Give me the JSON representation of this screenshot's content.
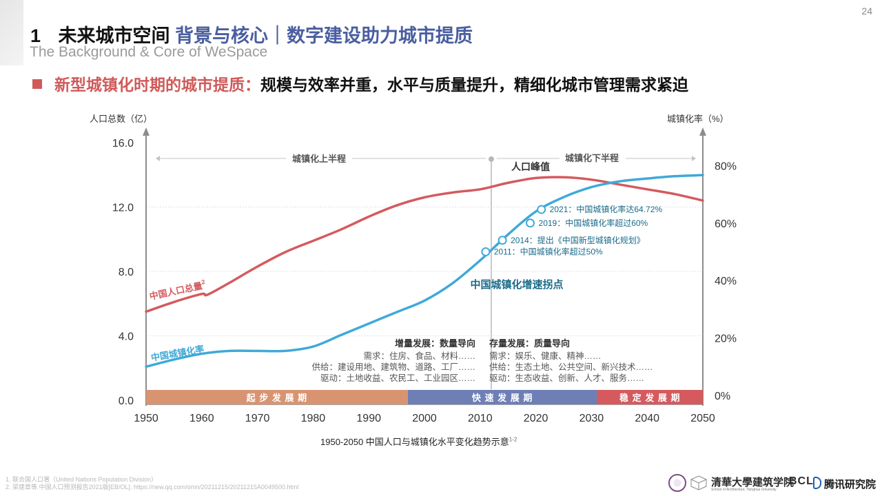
{
  "page_number": "24",
  "title": {
    "number": "1",
    "main": "未来城市空间",
    "accent": "背景与核心｜数字建设助力城市提质"
  },
  "subtitle_en": "The Background & Core of WeSpace",
  "headline": {
    "red": "新型城镇化时期的城市提质：",
    "black": "规模与效率并重，水平与质量提升，精细化城市管理需求紧迫"
  },
  "colors": {
    "population": "#d45a5e",
    "urbanization": "#3fa9d8",
    "phase1": "#d89470",
    "phase2": "#6e7fb6",
    "phase3": "#d45a5e",
    "accent": "#4a5ea0",
    "annotation": "#1a6b8a"
  },
  "chart_data": {
    "type": "line",
    "x": [
      1950,
      1955,
      1960,
      1961,
      1965,
      1970,
      1975,
      1980,
      1985,
      1990,
      1995,
      2000,
      2005,
      2010,
      2015,
      2020,
      2022,
      2025,
      2030,
      2035,
      2040,
      2045,
      2050
    ],
    "xlim": [
      1950,
      2050
    ],
    "x_ticks": [
      1950,
      1960,
      1970,
      1980,
      1990,
      2000,
      2010,
      2020,
      2030,
      2040,
      2050
    ],
    "y_left_label": "人口总数（亿）",
    "y_left_lim": [
      0,
      16
    ],
    "y_left_ticks": [
      "16.0",
      "12.0",
      "8.0",
      "4.0",
      "0.0"
    ],
    "y_left_tick_values": [
      16,
      12,
      8,
      4,
      0
    ],
    "y_right_label": "城镇化率（%）",
    "y_right_lim": [
      0,
      88
    ],
    "y_right_ticks": [
      "80%",
      "60%",
      "40%",
      "20%",
      "0%"
    ],
    "y_right_tick_values": [
      80,
      60,
      40,
      20,
      0
    ],
    "series": [
      {
        "name": "中国人口总量",
        "superscript": "2",
        "axis": "left",
        "color": "#d45a5e",
        "x": [
          1950,
          1955,
          1960,
          1961,
          1965,
          1970,
          1975,
          1980,
          1985,
          1990,
          1995,
          2000,
          2005,
          2010,
          2015,
          2020,
          2025,
          2030,
          2035,
          2040,
          2045,
          2050
        ],
        "values": [
          5.5,
          6.1,
          6.6,
          6.55,
          7.3,
          8.3,
          9.2,
          9.9,
          10.6,
          11.4,
          12.1,
          12.6,
          12.9,
          13.1,
          13.5,
          13.8,
          13.85,
          13.7,
          13.4,
          13.1,
          12.8,
          12.4
        ]
      },
      {
        "name": "中国城镇化率",
        "axis": "right",
        "color": "#3fa9d8",
        "x": [
          1950,
          1955,
          1960,
          1965,
          1970,
          1975,
          1980,
          1985,
          1990,
          1995,
          2000,
          2005,
          2010,
          2015,
          2020,
          2025,
          2030,
          2035,
          2040,
          2045,
          2050
        ],
        "values": [
          10,
          12.5,
          14.5,
          15.5,
          15.5,
          15.5,
          17,
          21,
          25,
          29,
          33,
          39,
          47,
          56,
          64,
          69,
          72.5,
          74.5,
          75.5,
          76.3,
          76.7
        ]
      }
    ],
    "milestones": [
      {
        "year": 2011,
        "rate": 50,
        "label": "2011：中国城镇化率超过50%"
      },
      {
        "year": 2014,
        "rate": 54,
        "label": "2014：提出《中国新型城镇化规划》"
      },
      {
        "year": 2019,
        "rate": 60,
        "label": "2019：中国城镇化率超过60%"
      },
      {
        "year": 2021,
        "rate": 64.72,
        "label": "2021：中国城镇化率达64.72%"
      }
    ],
    "annotations": {
      "inflection_label": "中国城镇化增速拐点",
      "peak_label": "人口峰值",
      "first_half": "城镇化上半程",
      "second_half": "城镇化下半程",
      "divider_year": 2012
    },
    "phases_text": [
      {
        "title": "增量发展：数量导向",
        "lines": [
          "需求：住房、食品、材料……",
          "供给：建设用地、建筑物、道路、工厂……",
          "驱动：土地收益、农民工、工业园区……"
        ]
      },
      {
        "title": "存量发展：质量导向",
        "lines": [
          "需求：娱乐、健康、精神……",
          "供给：生态土地、公共空间、新兴技术……",
          "驱动：生态收益、创新、人才、服务……"
        ]
      }
    ],
    "periods": [
      {
        "label": "起步发展期",
        "start": 1950,
        "end": 1997,
        "color": "#d89470"
      },
      {
        "label": "快速发展期",
        "start": 1997,
        "end": 2031,
        "color": "#6e7fb6"
      },
      {
        "label": "稳定发展期",
        "start": 2031,
        "end": 2050,
        "color": "#d45a5e"
      }
    ],
    "caption": "1950-2050 中国人口与城镇化水平变化趋势示意",
    "caption_sup": "1-2"
  },
  "footnotes": [
    "1. 联合国人口署（United Nations Population Division）",
    "2. 梁建章等.中国人口预测报告2021版[EB/OL]. https://new.qq.com/omn/20211215/20211215A0049500.html"
  ],
  "logos": {
    "tsinghua": "清華大學建筑学院",
    "tsinghua_sub": "School of Architecture, Tsinghua University",
    "bcl": "BCL",
    "tencent": "腾讯研究院"
  }
}
